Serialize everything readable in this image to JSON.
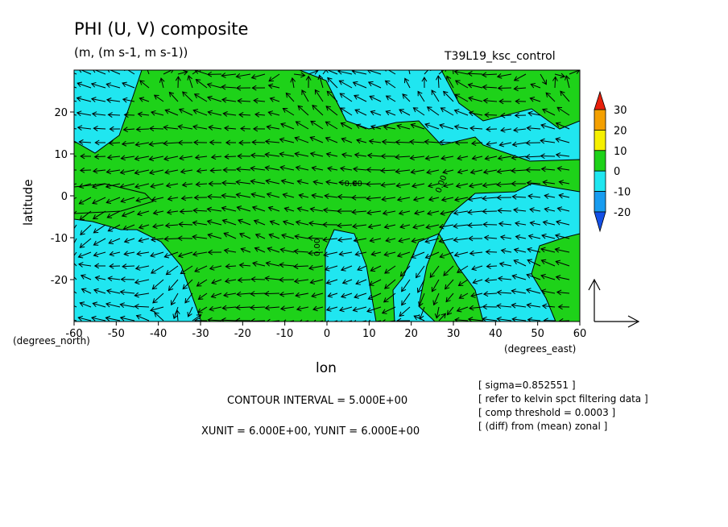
{
  "chart_data": {
    "type": "contour+vector",
    "title": "PHI (U, V) composite",
    "subtitle": "(m, (m s-1, m s-1))",
    "run_label": "T39L19_ksc_control",
    "xlabel": "lon",
    "ylabel": "latitude",
    "x_unit_note": "(degrees_east)",
    "y_unit_note": "(degrees_north)",
    "xlim": [
      -60,
      60
    ],
    "ylim": [
      -30,
      30
    ],
    "xticks": [
      -60,
      -50,
      -40,
      -30,
      -20,
      -10,
      0,
      10,
      20,
      30,
      40,
      50,
      60
    ],
    "yticks": [
      20,
      10,
      0,
      -10,
      -20
    ],
    "contour_labels": [
      "-0.00",
      "0.00",
      "0.00"
    ],
    "colorbar": {
      "ticks": [
        30,
        20,
        10,
        0,
        -10,
        -20
      ],
      "colors": {
        "gt30": "#e8200c",
        "20_30": "#f4a000",
        "10_20": "#f6f000",
        "0_10": "#1ed219",
        "m10_0": "#20e6f0",
        "m20_m10": "#189cf0",
        "lt_m20": "#1450e6"
      }
    },
    "grid": false,
    "contour_interval": "CONTOUR INTERVAL = 5.000E+00",
    "vector_units": "XUNIT = 6.000E+00, YUNIT = 6.000E+00",
    "notes": [
      "[ sigma=0.852551 ]",
      "[ refer to kelvin spct filtering data ]",
      "[ comp threshold = 0.0003 ]",
      "[ (diff) from (mean) zonal ]"
    ]
  }
}
